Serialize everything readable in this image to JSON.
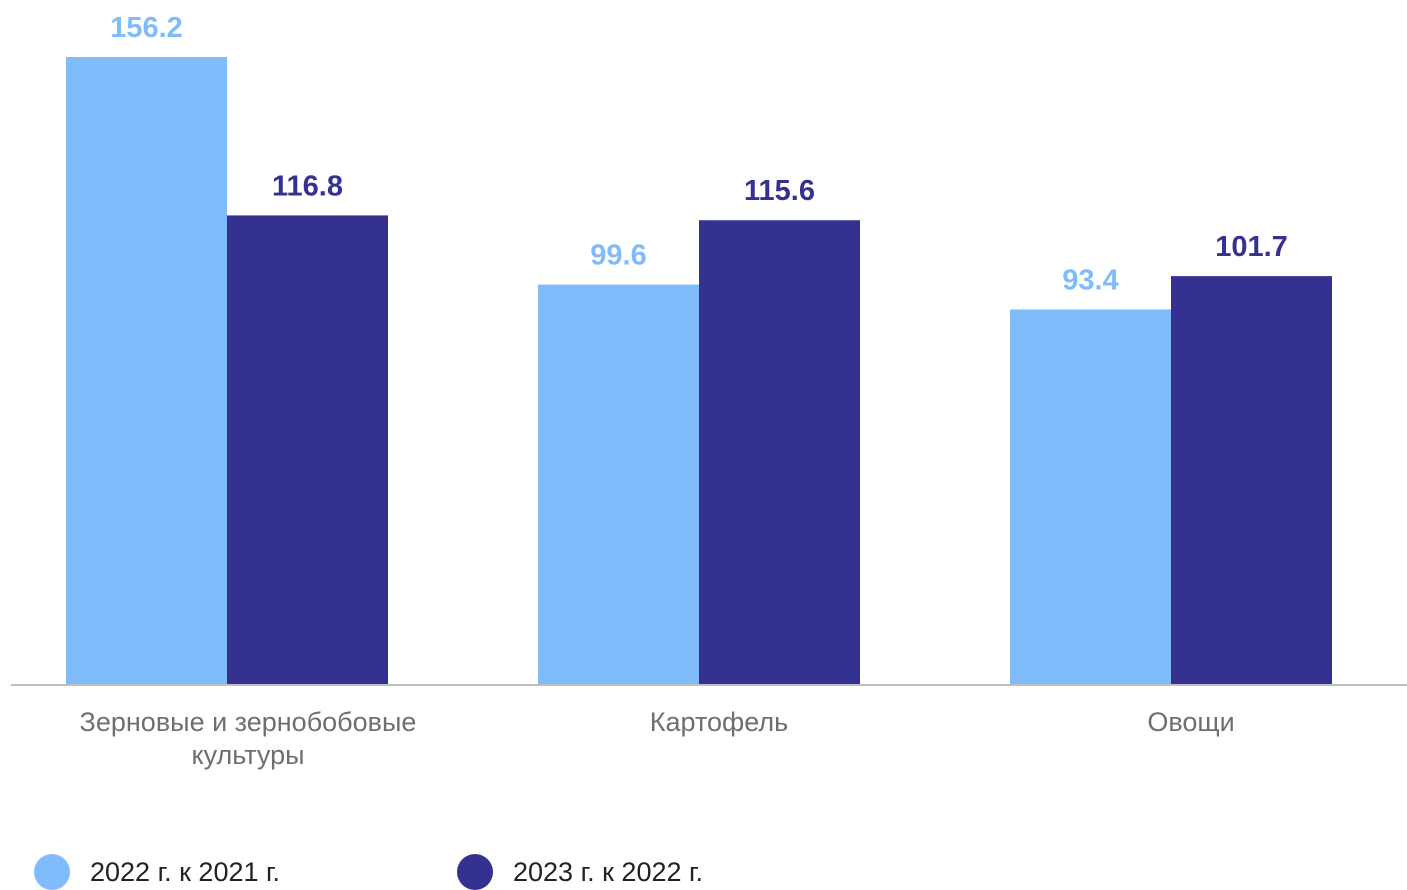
{
  "chart_data": {
    "type": "bar",
    "categories": [
      [
        "Зерновые и зернобобовые",
        "культуры"
      ],
      [
        "Картофель"
      ],
      [
        "Овощи"
      ]
    ],
    "series": [
      {
        "name": "2022 г. к 2021 г.",
        "values": [
          156.2,
          99.6,
          93.4
        ],
        "color": "#80BBFB"
      },
      {
        "name": "2023 г. к 2022 г.",
        "values": [
          116.8,
          115.6,
          101.7
        ],
        "color": "#353191"
      }
    ],
    "value_labels": [
      [
        "156.2",
        "99.6",
        "93.4"
      ],
      [
        "116.8",
        "115.6",
        "101.7"
      ]
    ],
    "ylim": [
      0,
      160
    ],
    "grid": false,
    "legend_position": "bottom-left",
    "axis_color": "#BFBFBF"
  },
  "legend": {
    "items": [
      "2022 г. к 2021 г.",
      "2023 г. к 2022 г."
    ]
  }
}
